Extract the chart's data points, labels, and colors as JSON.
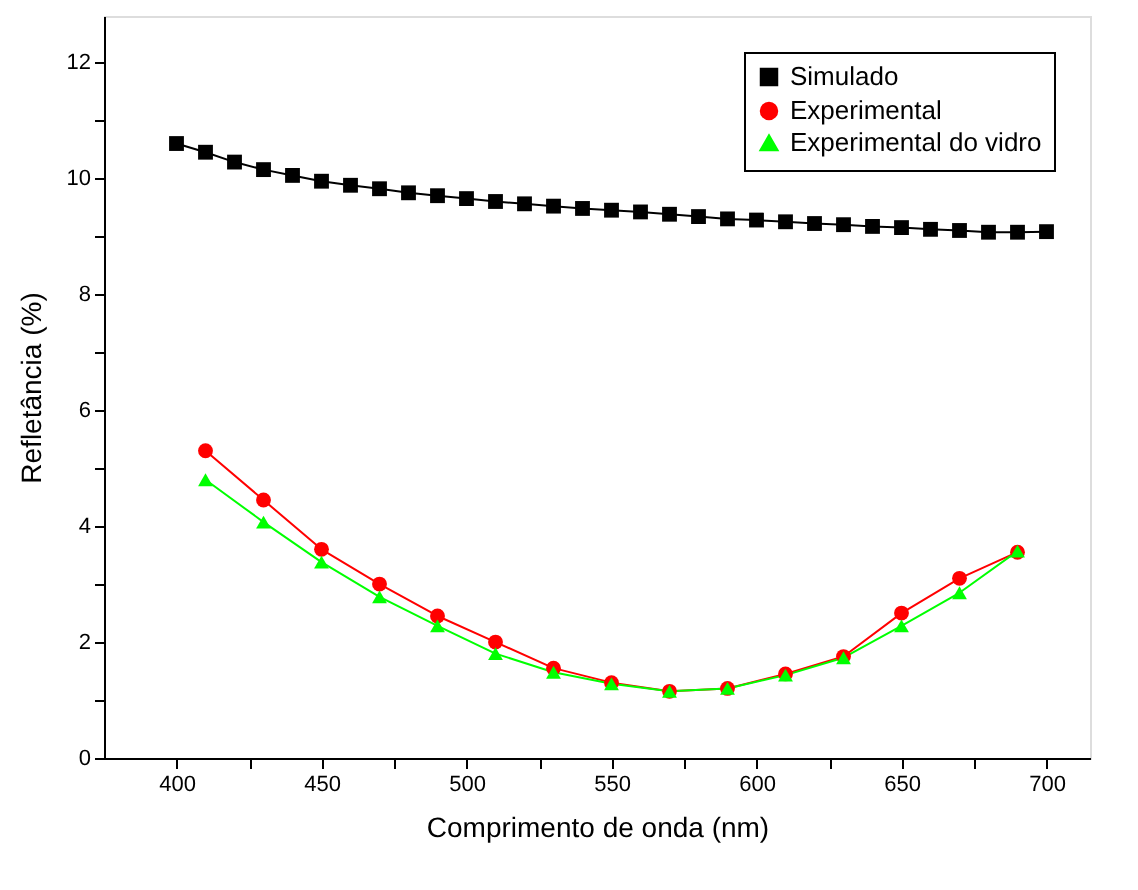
{
  "chart_data": {
    "type": "line",
    "xlabel": "Comprimento de onda (nm)",
    "ylabel": "Refletância (%)",
    "xlim": [
      375,
      715
    ],
    "ylim": [
      0,
      12.8
    ],
    "xticks": [
      400,
      {
        "value": 425,
        "label": null
      },
      450,
      {
        "value": 475,
        "label": null
      },
      500,
      {
        "value": 525,
        "label": null
      },
      550,
      {
        "value": 575,
        "label": null
      },
      600,
      {
        "value": 625,
        "label": null
      },
      650,
      {
        "value": 675,
        "label": null
      },
      700
    ],
    "yticks": [
      0,
      {
        "value": 1,
        "label": null
      },
      2,
      {
        "value": 3,
        "label": null
      },
      4,
      {
        "value": 5,
        "label": null
      },
      6,
      {
        "value": 7,
        "label": null
      },
      8,
      {
        "value": 9,
        "label": null
      },
      10,
      {
        "value": 11,
        "label": null
      },
      12
    ],
    "grid": false,
    "legend": "top right",
    "line_style": "solid",
    "series": [
      {
        "name": "Simulado",
        "color": "#000000",
        "marker": "square",
        "x": [
          400,
          410,
          420,
          430,
          440,
          450,
          460,
          470,
          480,
          490,
          500,
          510,
          520,
          530,
          540,
          550,
          560,
          570,
          580,
          590,
          600,
          610,
          620,
          630,
          640,
          650,
          660,
          670,
          680,
          690,
          700
        ],
        "values": [
          10.6,
          10.45,
          10.28,
          10.15,
          10.05,
          9.95,
          9.88,
          9.82,
          9.75,
          9.7,
          9.65,
          9.6,
          9.56,
          9.52,
          9.48,
          9.45,
          9.42,
          9.38,
          9.34,
          9.3,
          9.28,
          9.25,
          9.22,
          9.2,
          9.17,
          9.15,
          9.12,
          9.1,
          9.07,
          9.07,
          9.08
        ]
      },
      {
        "name": "Experimental",
        "color": "#ff0000",
        "marker": "circle",
        "x": [
          410,
          430,
          450,
          470,
          490,
          510,
          530,
          550,
          570,
          590,
          610,
          630,
          650,
          670,
          690
        ],
        "values": [
          5.3,
          4.45,
          3.6,
          3.0,
          2.45,
          2.0,
          1.55,
          1.3,
          1.15,
          1.2,
          1.45,
          1.75,
          2.5,
          3.1,
          3.55
        ]
      },
      {
        "name": "Experimental do vidro",
        "color": "#00ff00",
        "marker": "triangle",
        "x": [
          410,
          430,
          450,
          470,
          490,
          510,
          530,
          550,
          570,
          590,
          610,
          630,
          650,
          670,
          690
        ],
        "values": [
          4.8,
          4.07,
          3.38,
          2.78,
          2.28,
          1.8,
          1.48,
          1.28,
          1.15,
          1.2,
          1.43,
          1.73,
          2.28,
          2.85,
          3.57
        ]
      }
    ]
  }
}
